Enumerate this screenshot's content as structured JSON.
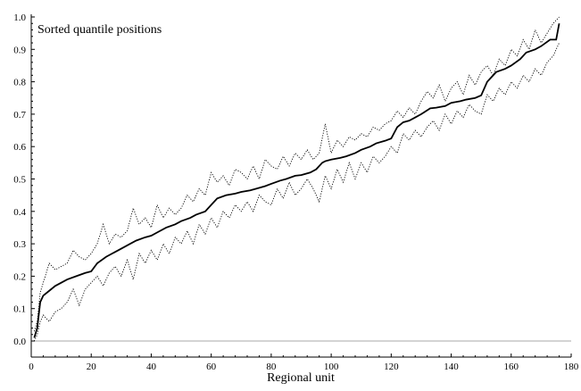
{
  "chart_data": {
    "type": "line",
    "title": "",
    "annotation": "Sorted quantile positions",
    "xlabel": "Regional unit",
    "ylabel": "",
    "xlim": [
      0,
      180
    ],
    "ylim": [
      0.0,
      1.0
    ],
    "xticks": [
      "0",
      "20",
      "40",
      "60",
      "80",
      "100",
      "120",
      "140",
      "160",
      "180"
    ],
    "yticks": [
      "0.0",
      "0.1",
      "0.2",
      "0.3",
      "0.4",
      "0.5",
      "0.6",
      "0.7",
      "0.8",
      "0.9",
      "1.0"
    ],
    "grid": false,
    "n_units": 176,
    "series": [
      {
        "style": "solid",
        "x": [
          1,
          2,
          3,
          4,
          6,
          8,
          10,
          12,
          15,
          18,
          20,
          22,
          25,
          28,
          30,
          33,
          35,
          38,
          40,
          42,
          45,
          48,
          50,
          53,
          55,
          58,
          60,
          62,
          65,
          68,
          70,
          73,
          75,
          78,
          80,
          83,
          85,
          88,
          90,
          93,
          95,
          97,
          98,
          100,
          103,
          105,
          108,
          110,
          113,
          115,
          118,
          120,
          122,
          124,
          126,
          128,
          130,
          133,
          135,
          138,
          140,
          143,
          145,
          148,
          150,
          152,
          155,
          158,
          160,
          163,
          165,
          168,
          170,
          173,
          175,
          176
        ],
        "y": [
          0.01,
          0.04,
          0.12,
          0.14,
          0.155,
          0.17,
          0.18,
          0.19,
          0.2,
          0.21,
          0.215,
          0.24,
          0.26,
          0.275,
          0.285,
          0.3,
          0.31,
          0.32,
          0.325,
          0.335,
          0.35,
          0.36,
          0.37,
          0.38,
          0.39,
          0.4,
          0.42,
          0.44,
          0.45,
          0.455,
          0.46,
          0.465,
          0.47,
          0.478,
          0.485,
          0.495,
          0.5,
          0.51,
          0.512,
          0.52,
          0.53,
          0.55,
          0.555,
          0.56,
          0.565,
          0.57,
          0.58,
          0.59,
          0.6,
          0.61,
          0.618,
          0.625,
          0.66,
          0.675,
          0.68,
          0.69,
          0.7,
          0.718,
          0.72,
          0.725,
          0.735,
          0.74,
          0.745,
          0.75,
          0.758,
          0.8,
          0.83,
          0.84,
          0.85,
          0.87,
          0.89,
          0.9,
          0.91,
          0.93,
          0.93,
          0.98
        ]
      },
      {
        "style": "dotted",
        "x": [
          1,
          2,
          3,
          4,
          6,
          8,
          10,
          12,
          14,
          16,
          18,
          20,
          22,
          24,
          26,
          28,
          30,
          32,
          34,
          36,
          38,
          40,
          42,
          44,
          46,
          48,
          50,
          52,
          54,
          56,
          58,
          60,
          62,
          64,
          66,
          68,
          70,
          72,
          74,
          76,
          78,
          80,
          82,
          84,
          86,
          88,
          90,
          92,
          94,
          96,
          98,
          100,
          102,
          104,
          106,
          108,
          110,
          112,
          114,
          116,
          118,
          120,
          122,
          124,
          126,
          128,
          130,
          132,
          134,
          136,
          138,
          140,
          142,
          144,
          146,
          148,
          150,
          152,
          154,
          156,
          158,
          160,
          162,
          164,
          166,
          168,
          170,
          172,
          174,
          176
        ],
        "y": [
          0.03,
          0.06,
          0.15,
          0.18,
          0.24,
          0.22,
          0.23,
          0.24,
          0.28,
          0.26,
          0.25,
          0.27,
          0.3,
          0.36,
          0.3,
          0.33,
          0.32,
          0.34,
          0.41,
          0.36,
          0.38,
          0.35,
          0.42,
          0.38,
          0.41,
          0.39,
          0.41,
          0.45,
          0.43,
          0.47,
          0.45,
          0.52,
          0.49,
          0.51,
          0.48,
          0.53,
          0.52,
          0.5,
          0.54,
          0.5,
          0.56,
          0.54,
          0.53,
          0.57,
          0.54,
          0.58,
          0.56,
          0.59,
          0.56,
          0.58,
          0.67,
          0.58,
          0.62,
          0.6,
          0.63,
          0.62,
          0.64,
          0.63,
          0.66,
          0.65,
          0.67,
          0.68,
          0.71,
          0.69,
          0.72,
          0.7,
          0.74,
          0.77,
          0.75,
          0.79,
          0.74,
          0.78,
          0.8,
          0.76,
          0.82,
          0.79,
          0.83,
          0.85,
          0.82,
          0.87,
          0.85,
          0.9,
          0.88,
          0.93,
          0.9,
          0.96,
          0.92,
          0.95,
          0.98,
          1.0
        ]
      },
      {
        "style": "dotted",
        "x": [
          1,
          2,
          3,
          4,
          6,
          8,
          10,
          12,
          14,
          16,
          18,
          20,
          22,
          24,
          26,
          28,
          30,
          32,
          34,
          36,
          38,
          40,
          42,
          44,
          46,
          48,
          50,
          52,
          54,
          56,
          58,
          60,
          62,
          64,
          66,
          68,
          70,
          72,
          74,
          76,
          78,
          80,
          82,
          84,
          86,
          88,
          90,
          92,
          94,
          96,
          98,
          100,
          102,
          104,
          106,
          108,
          110,
          112,
          114,
          116,
          118,
          120,
          122,
          124,
          126,
          128,
          130,
          132,
          134,
          136,
          138,
          140,
          142,
          144,
          146,
          148,
          150,
          152,
          154,
          156,
          158,
          160,
          162,
          164,
          166,
          168,
          170,
          172,
          174,
          176
        ],
        "y": [
          0.0,
          0.02,
          0.06,
          0.08,
          0.06,
          0.09,
          0.1,
          0.12,
          0.16,
          0.11,
          0.16,
          0.18,
          0.2,
          0.17,
          0.21,
          0.23,
          0.2,
          0.25,
          0.19,
          0.27,
          0.24,
          0.28,
          0.25,
          0.3,
          0.27,
          0.32,
          0.3,
          0.34,
          0.3,
          0.36,
          0.33,
          0.38,
          0.35,
          0.4,
          0.38,
          0.42,
          0.4,
          0.43,
          0.4,
          0.45,
          0.43,
          0.42,
          0.47,
          0.44,
          0.49,
          0.45,
          0.47,
          0.5,
          0.47,
          0.43,
          0.51,
          0.47,
          0.53,
          0.49,
          0.55,
          0.5,
          0.55,
          0.52,
          0.57,
          0.55,
          0.57,
          0.6,
          0.58,
          0.64,
          0.62,
          0.65,
          0.63,
          0.66,
          0.68,
          0.65,
          0.7,
          0.67,
          0.71,
          0.69,
          0.73,
          0.71,
          0.7,
          0.76,
          0.74,
          0.78,
          0.76,
          0.8,
          0.78,
          0.82,
          0.8,
          0.84,
          0.82,
          0.86,
          0.88,
          0.92
        ]
      }
    ]
  }
}
